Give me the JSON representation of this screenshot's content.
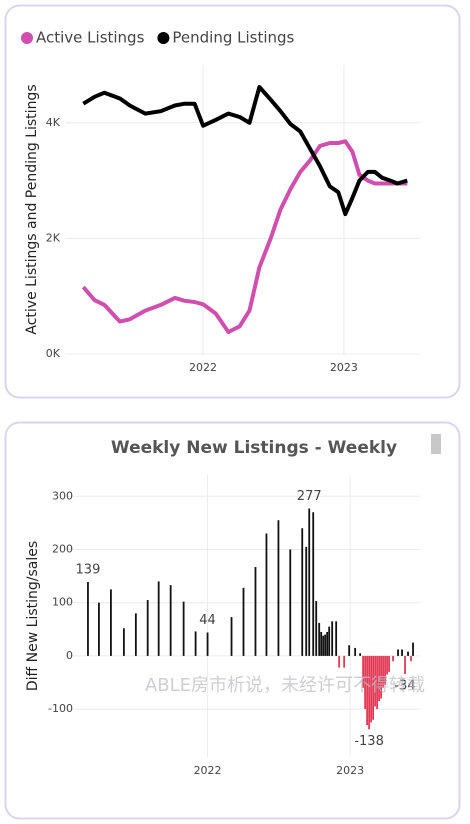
{
  "chart_data": [
    {
      "type": "line",
      "ylabel": "Active Listings and Pending Listings",
      "legend": "top-left",
      "grid": true,
      "xlim": [
        2021.02,
        2023.54
      ],
      "xticks": [
        2022,
        2023
      ],
      "ylim": [
        0,
        5000
      ],
      "yticks": [
        {
          "value": 0,
          "label": "0K"
        },
        {
          "value": 2000,
          "label": "2K"
        },
        {
          "value": 4000,
          "label": "4K"
        }
      ],
      "x": [
        2021.15,
        2021.23,
        2021.3,
        2021.41,
        2021.48,
        2021.59,
        2021.7,
        2021.8,
        2021.87,
        2021.94,
        2022.0,
        2022.09,
        2022.18,
        2022.26,
        2022.33,
        2022.4,
        2022.48,
        2022.55,
        2022.62,
        2022.69,
        2022.76,
        2022.83,
        2022.9,
        2022.96,
        2023.01,
        2023.06,
        2023.11,
        2023.17,
        2023.22,
        2023.27,
        2023.33,
        2023.38,
        2023.45
      ],
      "series": [
        {
          "name": "Active Listings",
          "color": "#d04fae",
          "values": [
            1160,
            930,
            850,
            560,
            600,
            750,
            850,
            970,
            920,
            900,
            860,
            700,
            380,
            480,
            750,
            1500,
            2000,
            2500,
            2850,
            3150,
            3350,
            3600,
            3650,
            3650,
            3680,
            3500,
            3100,
            3000,
            2950,
            2950,
            2950,
            2950,
            2950
          ]
        },
        {
          "name": "Pending Listings",
          "color": "#000000",
          "values": [
            4330,
            4450,
            4520,
            4420,
            4300,
            4160,
            4200,
            4300,
            4330,
            4330,
            3950,
            4050,
            4160,
            4100,
            4000,
            4620,
            4400,
            4200,
            3980,
            3850,
            3550,
            3250,
            2900,
            2800,
            2420,
            2700,
            3000,
            3150,
            3150,
            3050,
            3000,
            2950,
            3000
          ]
        }
      ]
    },
    {
      "type": "bar",
      "title": "Weekly New Listings - Weekly",
      "ylabel": "Diff New Listing/sales",
      "watermark": "ABLE房市析说，未经许可不得转载",
      "grid": true,
      "color": "#111111",
      "negative_color": "#e23a55",
      "xlim": [
        2021.0,
        2023.49
      ],
      "xticks": [
        2022,
        2023
      ],
      "ylim": [
        -190,
        340
      ],
      "yticks": [
        -100,
        0,
        100,
        200,
        300
      ],
      "labeled": [
        0,
        10,
        19,
        38,
        52
      ],
      "x": [
        2021.161,
        2021.238,
        2021.322,
        2021.413,
        2021.497,
        2021.58,
        2021.657,
        2021.741,
        2021.832,
        2021.916,
        2022.0,
        2022.168,
        2022.252,
        2022.336,
        2022.413,
        2022.497,
        2022.58,
        2022.664,
        2022.692,
        2022.713,
        2022.741,
        2022.762,
        2022.783,
        2022.797,
        2022.811,
        2022.825,
        2022.839,
        2022.853,
        2022.874,
        2022.902,
        2022.923,
        2022.958,
        2022.993,
        2023.035,
        2023.07,
        2023.091,
        2023.105,
        2023.119,
        2023.133,
        2023.147,
        2023.161,
        2023.175,
        2023.189,
        2023.203,
        2023.217,
        2023.231,
        2023.245,
        2023.259,
        2023.273,
        2023.301,
        2023.336,
        2023.364,
        2023.385,
        2023.406,
        2023.427,
        2023.441
      ],
      "values": [
        139,
        100,
        125,
        52,
        80,
        105,
        140,
        133,
        102,
        46,
        44,
        73,
        128,
        167,
        230,
        255,
        200,
        240,
        205,
        277,
        270,
        103,
        62,
        45,
        38,
        40,
        45,
        55,
        65,
        65,
        -22,
        -22,
        20,
        15,
        5,
        -60,
        -100,
        -130,
        -138,
        -125,
        -120,
        -95,
        -100,
        -85,
        -80,
        -60,
        -55,
        -35,
        -30,
        -10,
        12,
        12,
        -34,
        8,
        -10,
        25
      ]
    }
  ]
}
